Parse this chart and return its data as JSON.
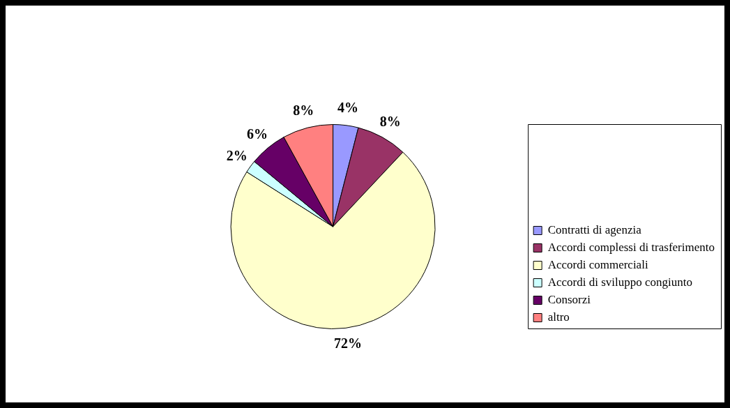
{
  "chart_data": {
    "type": "pie",
    "categories": [
      "Contratti di agenzia",
      "Accordi complessi di trasferimento",
      "Accordi commerciali",
      "Accordi di sviluppo congiunto",
      "Consorzi",
      "altro"
    ],
    "values": [
      4,
      8,
      72,
      2,
      6,
      8
    ],
    "colors": [
      "#9999ff",
      "#993366",
      "#ffffcc",
      "#ccffff",
      "#660066",
      "#ff8080"
    ],
    "value_labels": [
      "4%",
      "8%",
      "72%",
      "2%",
      "6%",
      "8%"
    ],
    "legend": "bottom right"
  }
}
